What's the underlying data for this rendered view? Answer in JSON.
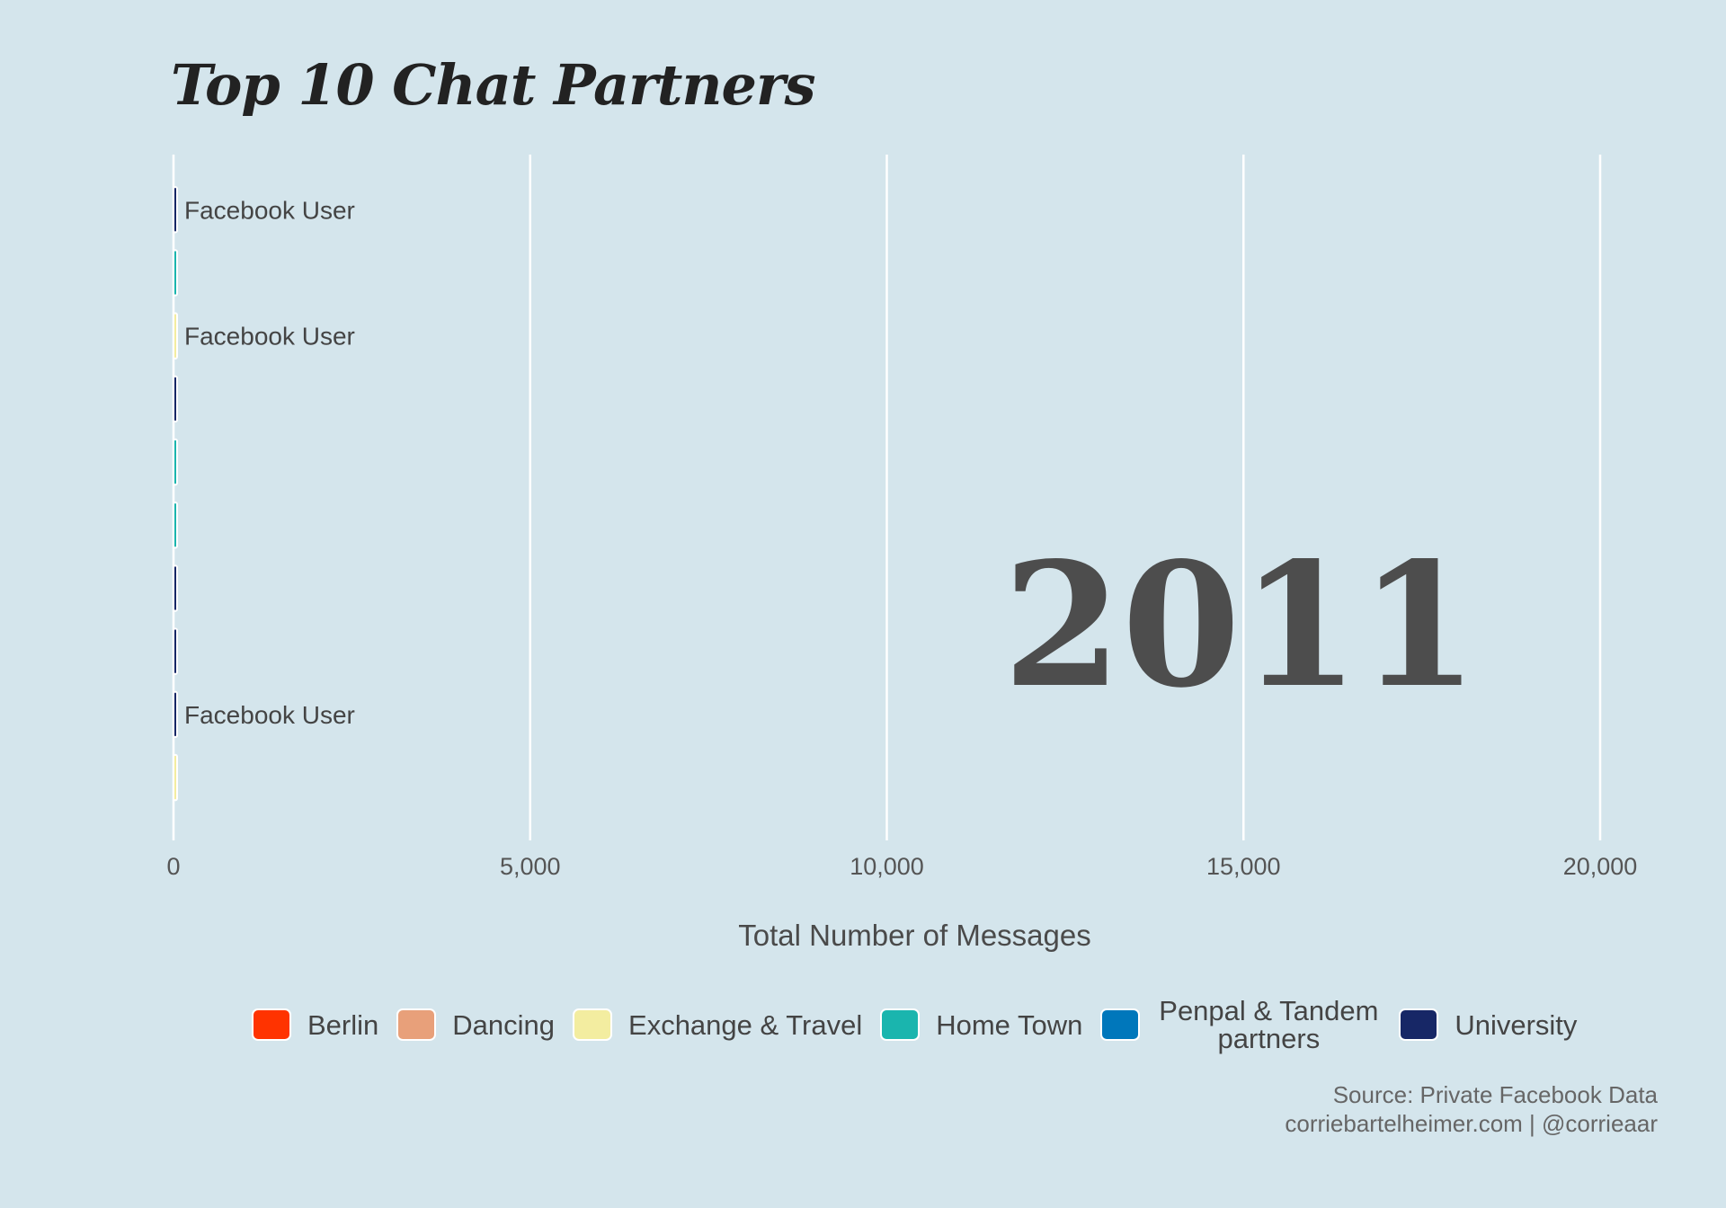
{
  "chart_data": {
    "type": "bar",
    "orientation": "horizontal",
    "title": "Top 10 Chat Partners",
    "xlabel": "Total Number of Messages",
    "ylabel": "",
    "xlim": [
      0,
      20000
    ],
    "x_ticks": [
      0,
      5000,
      10000,
      15000,
      20000
    ],
    "x_tick_labels": [
      "0",
      "5,000",
      "10,000",
      "15,000",
      "20,000"
    ],
    "year": "2011",
    "grid": "vertical",
    "legend_position": "bottom",
    "categories": [
      "Facebook User",
      "",
      "Facebook User",
      "",
      "",
      "",
      "",
      "",
      "Facebook User",
      ""
    ],
    "values": [
      20,
      15,
      15,
      15,
      10,
      10,
      10,
      10,
      8,
      5
    ],
    "groups": [
      "University",
      "Home Town",
      "Exchange & Travel",
      "University",
      "Home Town",
      "Home Town",
      "University",
      "University",
      "University",
      "Exchange & Travel"
    ],
    "legend": [
      {
        "label": "Berlin",
        "color": "#ff3300"
      },
      {
        "label": "Dancing",
        "color": "#e8a07a"
      },
      {
        "label": "Exchange & Travel",
        "color": "#f3eda0"
      },
      {
        "label": "Home Town",
        "color": "#1ab5ae"
      },
      {
        "label": "Penpal & Tandem partners",
        "color": "#0077bb"
      },
      {
        "label": "University",
        "color": "#172766"
      }
    ]
  },
  "caption": {
    "line1": "Source: Private Facebook Data",
    "line2": "corriebartelheimer.com | @corrieaar"
  }
}
